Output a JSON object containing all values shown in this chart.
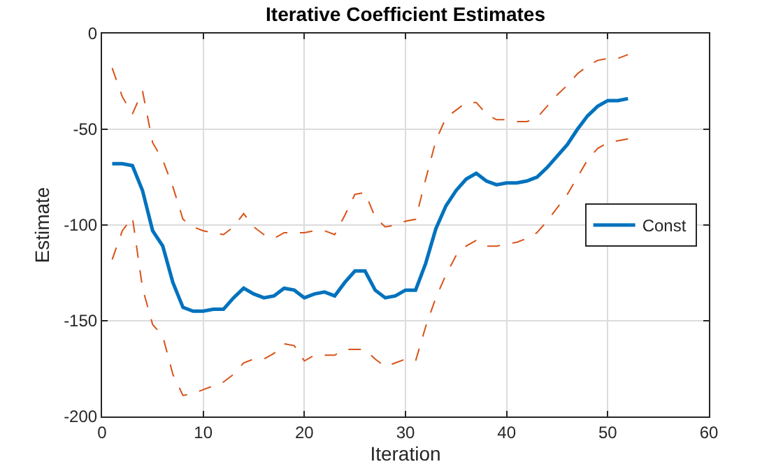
{
  "chart_data": {
    "type": "line",
    "title": "Iterative Coefficient Estimates",
    "xlabel": "Iteration",
    "ylabel": "Estimate",
    "x": [
      1,
      2,
      3,
      4,
      5,
      6,
      7,
      8,
      9,
      10,
      11,
      12,
      13,
      14,
      15,
      16,
      17,
      18,
      19,
      20,
      21,
      22,
      23,
      24,
      25,
      26,
      27,
      28,
      29,
      30,
      31,
      32,
      33,
      34,
      35,
      36,
      37,
      38,
      39,
      40,
      41,
      42,
      43,
      44,
      45,
      46,
      47,
      48,
      49,
      50,
      51,
      52
    ],
    "series": [
      {
        "name": "Const",
        "color": "#0072bd",
        "line_style": "solid",
        "values": [
          -68,
          -68,
          -69,
          -82,
          -103,
          -111,
          -130,
          -143,
          -145,
          -145,
          -144,
          -144,
          -138,
          -133,
          -136,
          -138,
          -137,
          -133,
          -134,
          -138,
          -136,
          -135,
          -137,
          -130,
          -124,
          -124,
          -134,
          -138,
          -137,
          -134,
          -134,
          -120,
          -102,
          -90,
          -82,
          -76,
          -73,
          -77,
          -79,
          -78,
          -78,
          -77,
          -75,
          -70,
          -64,
          -58,
          -50,
          -43,
          -38,
          -35,
          -35,
          -34
        ]
      },
      {
        "color": "#d95319",
        "line_style": "dashed",
        "values": [
          -18,
          -33,
          -42,
          -30,
          -57,
          -66,
          -80,
          -97,
          -101,
          -103,
          -104,
          -105,
          -101,
          -94,
          -101,
          -105,
          -107,
          -104,
          -104,
          -104,
          -103,
          -103,
          -105,
          -95,
          -84,
          -83,
          -96,
          -101,
          -100,
          -98,
          -97,
          -76,
          -56,
          -44,
          -40,
          -36,
          -36,
          -42,
          -45,
          -45,
          -46,
          -46,
          -44,
          -38,
          -32,
          -27,
          -21,
          -17,
          -14,
          -13,
          -13,
          -11
        ]
      },
      {
        "color": "#d95319",
        "line_style": "dashed",
        "values": [
          -118,
          -103,
          -96,
          -133,
          -152,
          -158,
          -178,
          -189,
          -188,
          -186,
          -184,
          -182,
          -178,
          -172,
          -170,
          -170,
          -167,
          -162,
          -163,
          -171,
          -168,
          -168,
          -168,
          -165,
          -165,
          -165,
          -170,
          -174,
          -172,
          -170,
          -171,
          -153,
          -138,
          -126,
          -116,
          -111,
          -108,
          -111,
          -111,
          -110,
          -109,
          -107,
          -104,
          -98,
          -91,
          -84,
          -75,
          -66,
          -60,
          -57,
          -56,
          -55
        ]
      }
    ],
    "xlim": [
      0,
      60
    ],
    "xticks": [
      0,
      10,
      20,
      30,
      40,
      50,
      60
    ],
    "ylim": [
      -200,
      0
    ],
    "yticks": [
      -200,
      -150,
      -100,
      -50,
      0
    ],
    "grid": true,
    "legend": "right",
    "marker": "none"
  }
}
